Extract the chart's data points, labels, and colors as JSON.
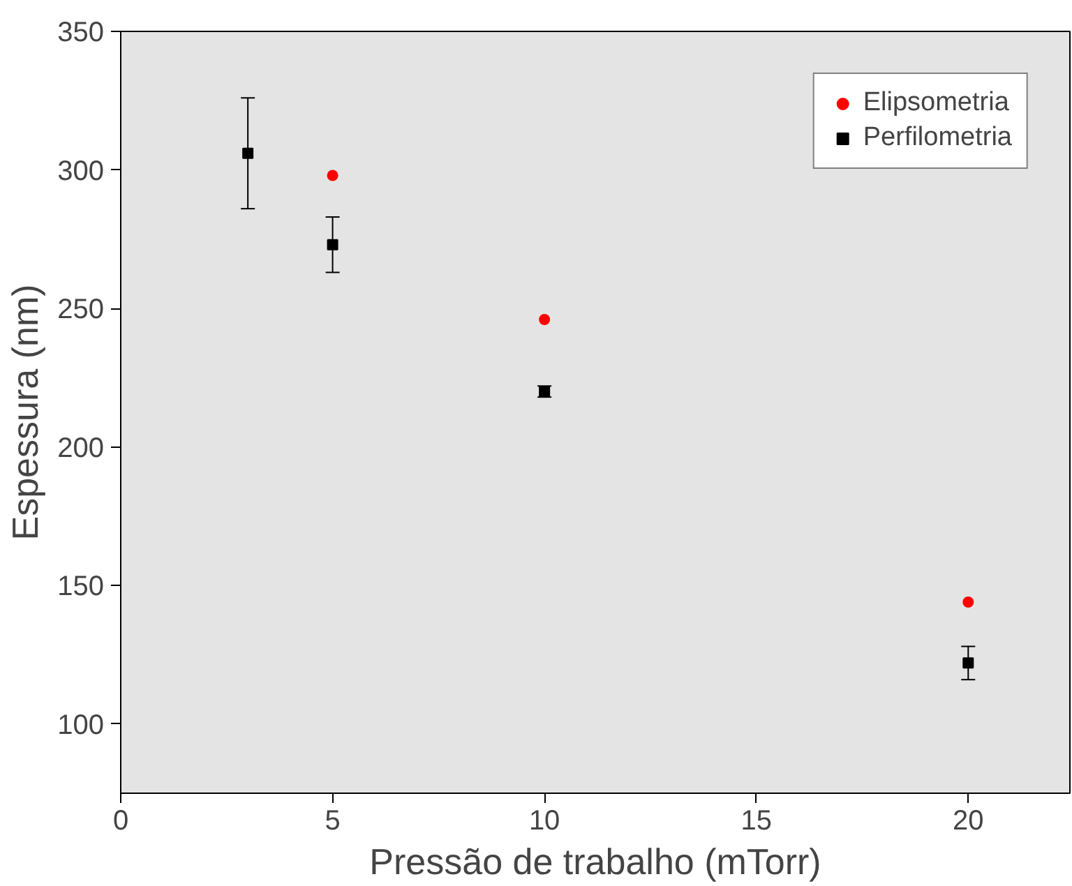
{
  "chart_data": {
    "type": "scatter",
    "xlabel": "Pressão de trabalho (mTorr)",
    "ylabel": "Espessura (nm)",
    "xlim": [
      0,
      22.4
    ],
    "xticks": [
      0,
      5,
      10,
      15,
      20
    ],
    "ylim": [
      75,
      350
    ],
    "yticks": [
      100,
      150,
      200,
      250,
      300,
      350
    ],
    "series": [
      {
        "name": "Elipsometria",
        "color": "#ff0000",
        "marker": "circle",
        "x": [
          5,
          10,
          20
        ],
        "values": [
          298,
          246,
          144
        ]
      },
      {
        "name": "Perfilometria",
        "color": "#000000",
        "marker": "square",
        "x": [
          3,
          5,
          10,
          20
        ],
        "values": [
          306,
          273,
          220,
          122
        ],
        "errors": [
          20,
          10,
          2,
          6
        ]
      }
    ],
    "grid": false,
    "legend": "top right"
  }
}
